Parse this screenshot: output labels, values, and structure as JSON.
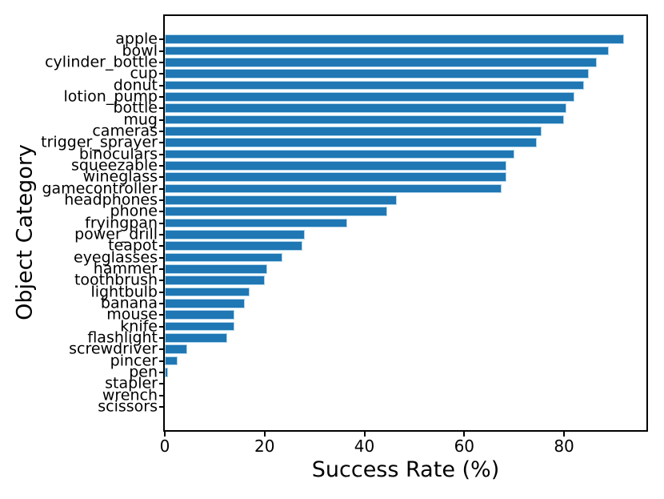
{
  "chart_data": {
    "type": "bar",
    "orientation": "horizontal",
    "title": "",
    "xlabel": "Success Rate (%)",
    "ylabel": "Object Category",
    "xlim": [
      0,
      96.5
    ],
    "xticks": [
      0,
      20,
      40,
      60,
      80
    ],
    "grid": false,
    "legend": null,
    "bar_color": "#1f77b4",
    "bar_edge_color": "#aed4ea",
    "axis_color": "#000000",
    "categories": [
      "apple",
      "bowl",
      "cylinder_bottle",
      "cup",
      "donut",
      "lotion_pump",
      "bottle",
      "mug",
      "cameras",
      "trigger_sprayer",
      "binoculars",
      "squeezable",
      "wineglass",
      "gamecontroller",
      "headphones",
      "phone",
      "fryingpan",
      "power_drill",
      "teapot",
      "eyeglasses",
      "hammer",
      "toothbrush",
      "lightbulb",
      "banana",
      "mouse",
      "knife",
      "flashlight",
      "screwdriver",
      "pincer",
      "pen",
      "stapler",
      "wrench",
      "scissors"
    ],
    "values": [
      92,
      89,
      86.5,
      85,
      84,
      82,
      80.5,
      80,
      75.5,
      74.5,
      70,
      68.5,
      68.5,
      67.5,
      46.5,
      44.5,
      36.5,
      28,
      27.5,
      23.5,
      20.5,
      20,
      17,
      16,
      14,
      14,
      12.5,
      4.5,
      2.5,
      0.7,
      0,
      0,
      0
    ]
  }
}
